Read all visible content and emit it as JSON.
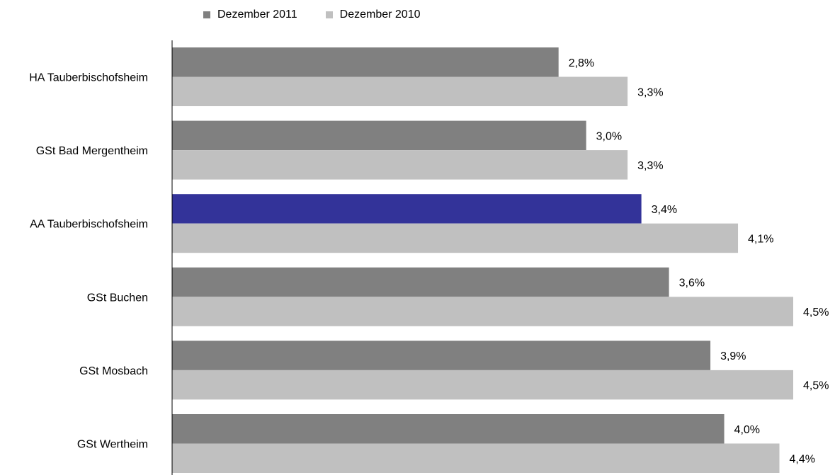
{
  "chart_data": {
    "type": "bar",
    "orientation": "horizontal",
    "categories": [
      "HA Tauberbischofsheim",
      "GSt Bad Mergentheim",
      "AA Tauberbischofsheim",
      "GSt Buchen",
      "GSt Mosbach",
      "GSt Wertheim"
    ],
    "series": [
      {
        "name": "Dezember 2011",
        "values": [
          2.8,
          3.0,
          3.4,
          3.6,
          3.9,
          4.0
        ],
        "labels": [
          "2,8%",
          "3,0%",
          "3,4%",
          "3,6%",
          "3,9%",
          "4,0%"
        ],
        "color": "#808080"
      },
      {
        "name": "Dezember 2010",
        "values": [
          3.3,
          3.3,
          4.1,
          4.5,
          4.5,
          4.4
        ],
        "labels": [
          "3,3%",
          "3,3%",
          "4,1%",
          "4,5%",
          "4,5%",
          "4,4%"
        ],
        "color": "#c0c0c0"
      }
    ],
    "highlight": {
      "category": "AA Tauberbischofsheim",
      "series": "Dezember 2011",
      "color": "#333399"
    },
    "xlim": [
      0,
      4.5
    ],
    "grid": false,
    "legend": "top"
  }
}
